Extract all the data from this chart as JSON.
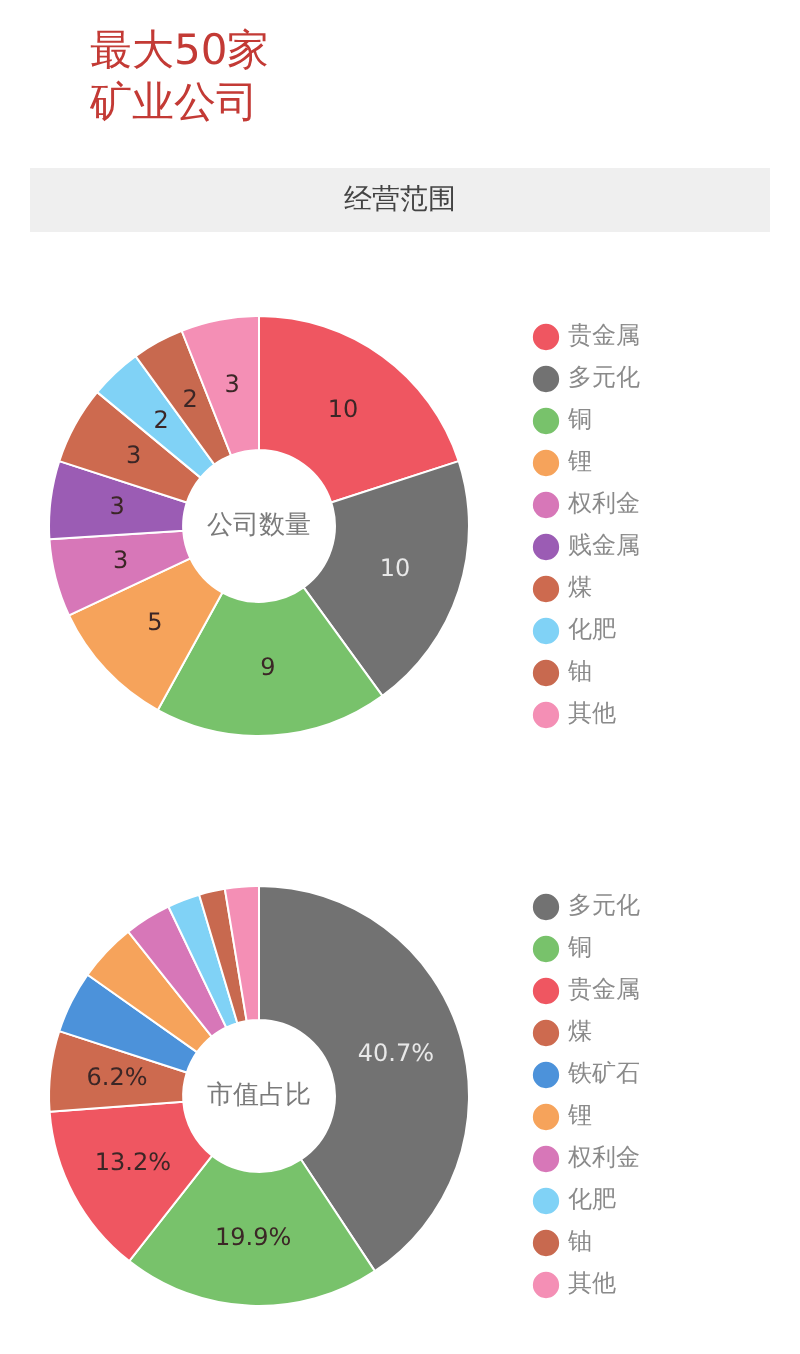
{
  "chart_data": [
    {
      "type": "donut",
      "title": "最大50家矿业公司",
      "subtitle": "经营范围",
      "annotations": [
        "公司数量"
      ],
      "categories": [
        "贵金属",
        "多元化",
        "铜",
        "锂",
        "权利金",
        "贱金属",
        "煤",
        "化肥",
        "铀",
        "其他"
      ],
      "values": [
        10,
        10,
        9,
        5,
        3,
        3,
        3,
        2,
        2,
        3
      ],
      "colors": [
        "#ef5661",
        "#727272",
        "#78c26b",
        "#f6a35b",
        "#d777b8",
        "#9b5cb4",
        "#cd6a4f",
        "#80d2f6",
        "#c8694f",
        "#f48fb5"
      ],
      "data_labels": true,
      "legend": "right"
    },
    {
      "type": "donut",
      "annotations": [
        "市值占比"
      ],
      "categories": [
        "多元化",
        "铜",
        "贵金属",
        "煤",
        "铁矿石",
        "锂",
        "权利金",
        "化肥",
        "铀",
        "其他"
      ],
      "values": [
        40.7,
        19.9,
        13.2,
        6.2,
        4.8,
        4.5,
        3.6,
        2.5,
        2.0,
        2.6
      ],
      "value_labels": [
        "40.7%",
        "19.9%",
        "13.2%",
        "6.2%",
        null,
        null,
        null,
        null,
        null,
        null
      ],
      "colors": [
        "#727272",
        "#78c26b",
        "#ef5661",
        "#cd6a4f",
        "#4c92da",
        "#f6a35b",
        "#d777b8",
        "#80d2f6",
        "#c8694f",
        "#f48fb5"
      ],
      "legend": "right"
    }
  ]
}
